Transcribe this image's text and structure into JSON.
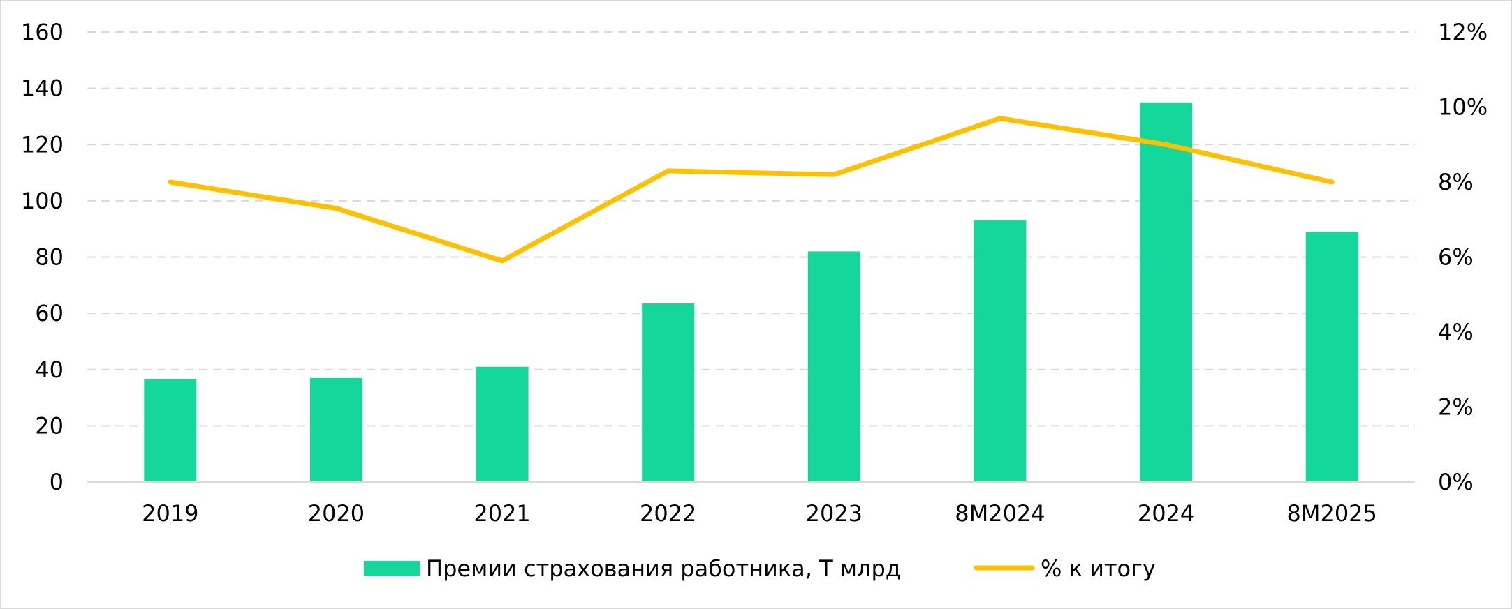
{
  "chart_data": {
    "type": "bar",
    "title": "",
    "xlabel": "",
    "ylabel": "",
    "categories": [
      "2019",
      "2020",
      "2021",
      "2022",
      "2023",
      "8M2024",
      "2024",
      "8M2025"
    ],
    "series": [
      {
        "name": "Премии страхования работника, Т млрд",
        "type": "bar",
        "axis": "left",
        "color": "#15d69b",
        "values": [
          36.5,
          37,
          41,
          63.5,
          82,
          93,
          135,
          89
        ]
      },
      {
        "name": "% к итогу",
        "type": "line",
        "axis": "right",
        "color": "#ffc000",
        "values": [
          8.0,
          7.3,
          5.9,
          8.3,
          8.2,
          9.7,
          9.0,
          8.0
        ]
      }
    ],
    "ylim": [
      0,
      160
    ],
    "yticks": [
      "0",
      "20",
      "40",
      "60",
      "80",
      "100",
      "120",
      "140",
      "160"
    ],
    "y2lim": [
      0,
      12
    ],
    "y2ticks": [
      "0%",
      "2%",
      "4%",
      "6%",
      "8%",
      "10%",
      "12%"
    ],
    "grid": true,
    "legend_position": "bottom"
  }
}
